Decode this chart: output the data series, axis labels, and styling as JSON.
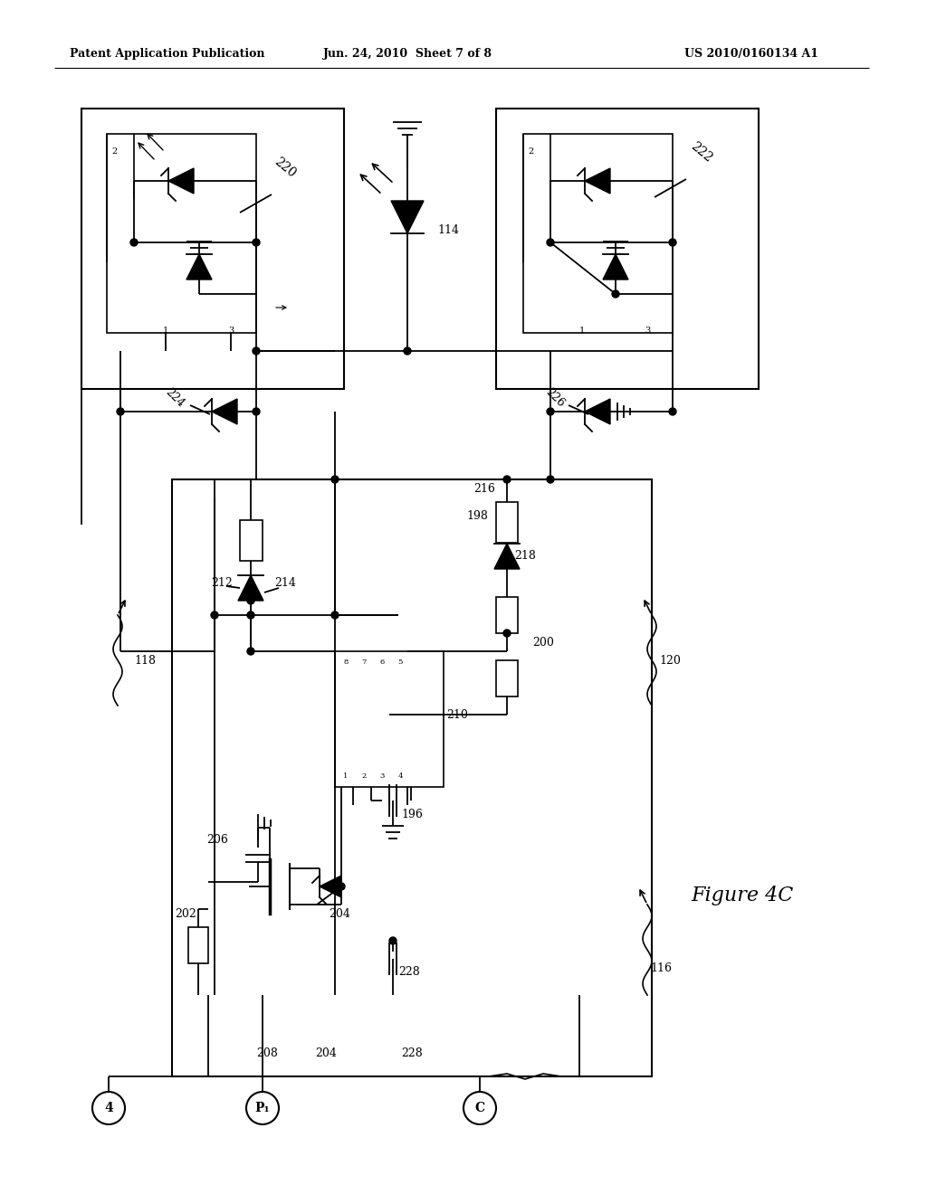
{
  "title_left": "Patent Application Publication",
  "title_mid": "Jun. 24, 2010  Sheet 7 of 8",
  "title_right": "US 2010/0160134 A1",
  "figure_label": "Figure 4C",
  "bg_color": "#ffffff",
  "line_color": "#000000"
}
